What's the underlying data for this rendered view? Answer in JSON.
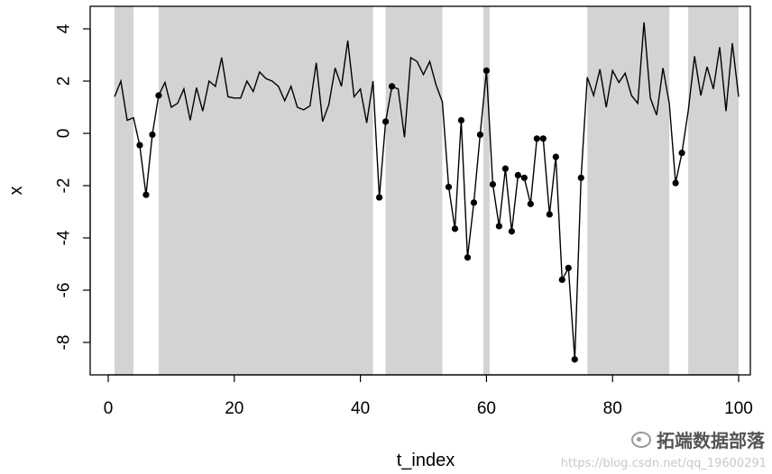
{
  "chart_data": {
    "type": "line",
    "xlabel": "t_index",
    "ylabel": "x",
    "xlim": [
      0,
      100
    ],
    "ylim": [
      -9,
      4.5
    ],
    "xticks": [
      0,
      20,
      40,
      60,
      80,
      100
    ],
    "yticks": [
      -8,
      -6,
      -4,
      -2,
      0,
      2,
      4
    ],
    "shaded_regions": [
      [
        1,
        4
      ],
      [
        8,
        42
      ],
      [
        44,
        53
      ],
      [
        59.5,
        60.5
      ],
      [
        76,
        89
      ],
      [
        92,
        100
      ]
    ],
    "shade_color": "#d3d3d3",
    "line_color": "#000000",
    "x": [
      1,
      2,
      3,
      4,
      5,
      6,
      7,
      8,
      9,
      10,
      11,
      12,
      13,
      14,
      15,
      16,
      17,
      18,
      19,
      20,
      21,
      22,
      23,
      24,
      25,
      26,
      27,
      28,
      29,
      30,
      31,
      32,
      33,
      34,
      35,
      36,
      37,
      38,
      39,
      40,
      41,
      42,
      43,
      44,
      45,
      46,
      47,
      48,
      49,
      50,
      51,
      52,
      53,
      54,
      55,
      56,
      57,
      58,
      59,
      60,
      61,
      62,
      63,
      64,
      65,
      66,
      67,
      68,
      69,
      70,
      71,
      72,
      73,
      74,
      75,
      76,
      77,
      78,
      79,
      80,
      81,
      82,
      83,
      84,
      85,
      86,
      87,
      88,
      89,
      90,
      91,
      92,
      93,
      94,
      95,
      96,
      97,
      98,
      99,
      100
    ],
    "y": [
      1.4,
      2.0,
      0.5,
      0.6,
      -0.45,
      -2.35,
      -0.05,
      1.45,
      1.95,
      1.0,
      1.15,
      1.7,
      0.5,
      1.75,
      0.85,
      2.0,
      1.8,
      2.9,
      1.4,
      1.35,
      1.35,
      2.0,
      1.6,
      2.35,
      2.1,
      2.0,
      1.8,
      1.25,
      1.8,
      1.0,
      0.9,
      1.05,
      2.7,
      0.45,
      1.1,
      2.5,
      1.8,
      3.55,
      1.4,
      1.7,
      0.4,
      2.0,
      -2.45,
      0.45,
      1.8,
      1.7,
      -0.15,
      2.9,
      2.75,
      2.25,
      2.75,
      1.85,
      1.2,
      -2.05,
      -3.65,
      0.5,
      -4.75,
      -2.65,
      -0.05,
      2.4,
      -1.95,
      -3.55,
      -1.35,
      -3.75,
      -1.6,
      -1.7,
      -2.7,
      -0.2,
      -0.2,
      -3.1,
      -0.9,
      -5.6,
      -5.15,
      -8.65,
      -1.7,
      2.15,
      1.45,
      2.45,
      1.0,
      2.4,
      1.95,
      2.3,
      1.45,
      1.15,
      4.25,
      1.35,
      0.7,
      2.5,
      1.15,
      -1.9,
      -0.75,
      0.85,
      2.95,
      1.45,
      2.55,
      1.7,
      3.3,
      0.85,
      3.45,
      1.4
    ],
    "marked_points": [
      5,
      6,
      7,
      8,
      43,
      44,
      45,
      54,
      55,
      56,
      57,
      58,
      59,
      60,
      61,
      62,
      63,
      64,
      65,
      66,
      67,
      68,
      69,
      70,
      71,
      72,
      73,
      74,
      75,
      90,
      91
    ]
  },
  "watermark": {
    "brand": "拓端数据部落",
    "url": "https://blog.csdn.net/qq_19600291"
  }
}
